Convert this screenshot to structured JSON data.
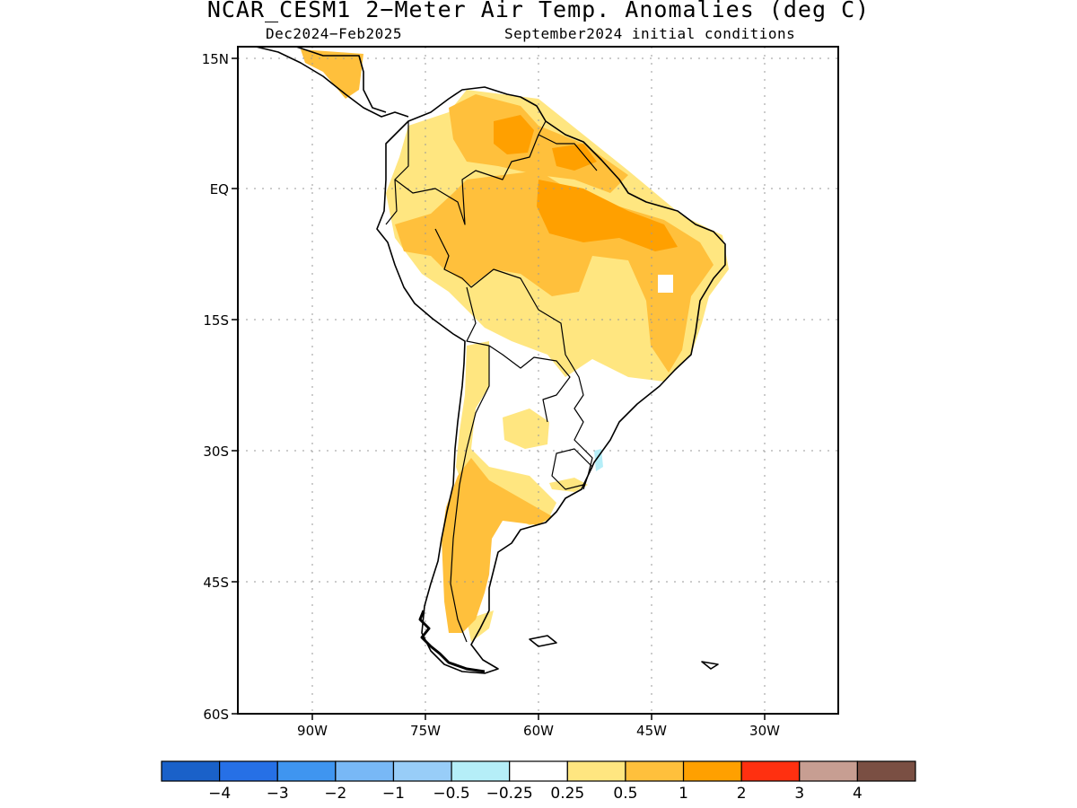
{
  "title": "NCAR_CESM1 2−Meter Air Temp. Anomalies (deg C)",
  "subtitle_left": "Dec2024−Feb2025",
  "subtitle_right": "September2024 initial conditions",
  "lat_ticks": [
    "15N",
    "EQ",
    "15S",
    "30S",
    "45S",
    "60S"
  ],
  "lon_ticks": [
    "90W",
    "75W",
    "60W",
    "45W",
    "30W"
  ],
  "legend": {
    "colors": [
      "#1a61c9",
      "#2670e6",
      "#3f95f0",
      "#78b8f6",
      "#98cdf8",
      "#b5eef8",
      "#ffffff",
      "#ffe680",
      "#ffc03c",
      "#ffa000",
      "#ff3010",
      "#c79e92",
      "#7a4f43"
    ],
    "labels": [
      "−4",
      "−3",
      "−2",
      "−1",
      "−0.5",
      "−0.25",
      "0.25",
      "0.5",
      "1",
      "2",
      "3",
      "4"
    ]
  },
  "palette": {
    "light": "#ffe680",
    "medium": "#ffc03c",
    "strong": "#ffa000",
    "cool": "#b5eef8"
  }
}
